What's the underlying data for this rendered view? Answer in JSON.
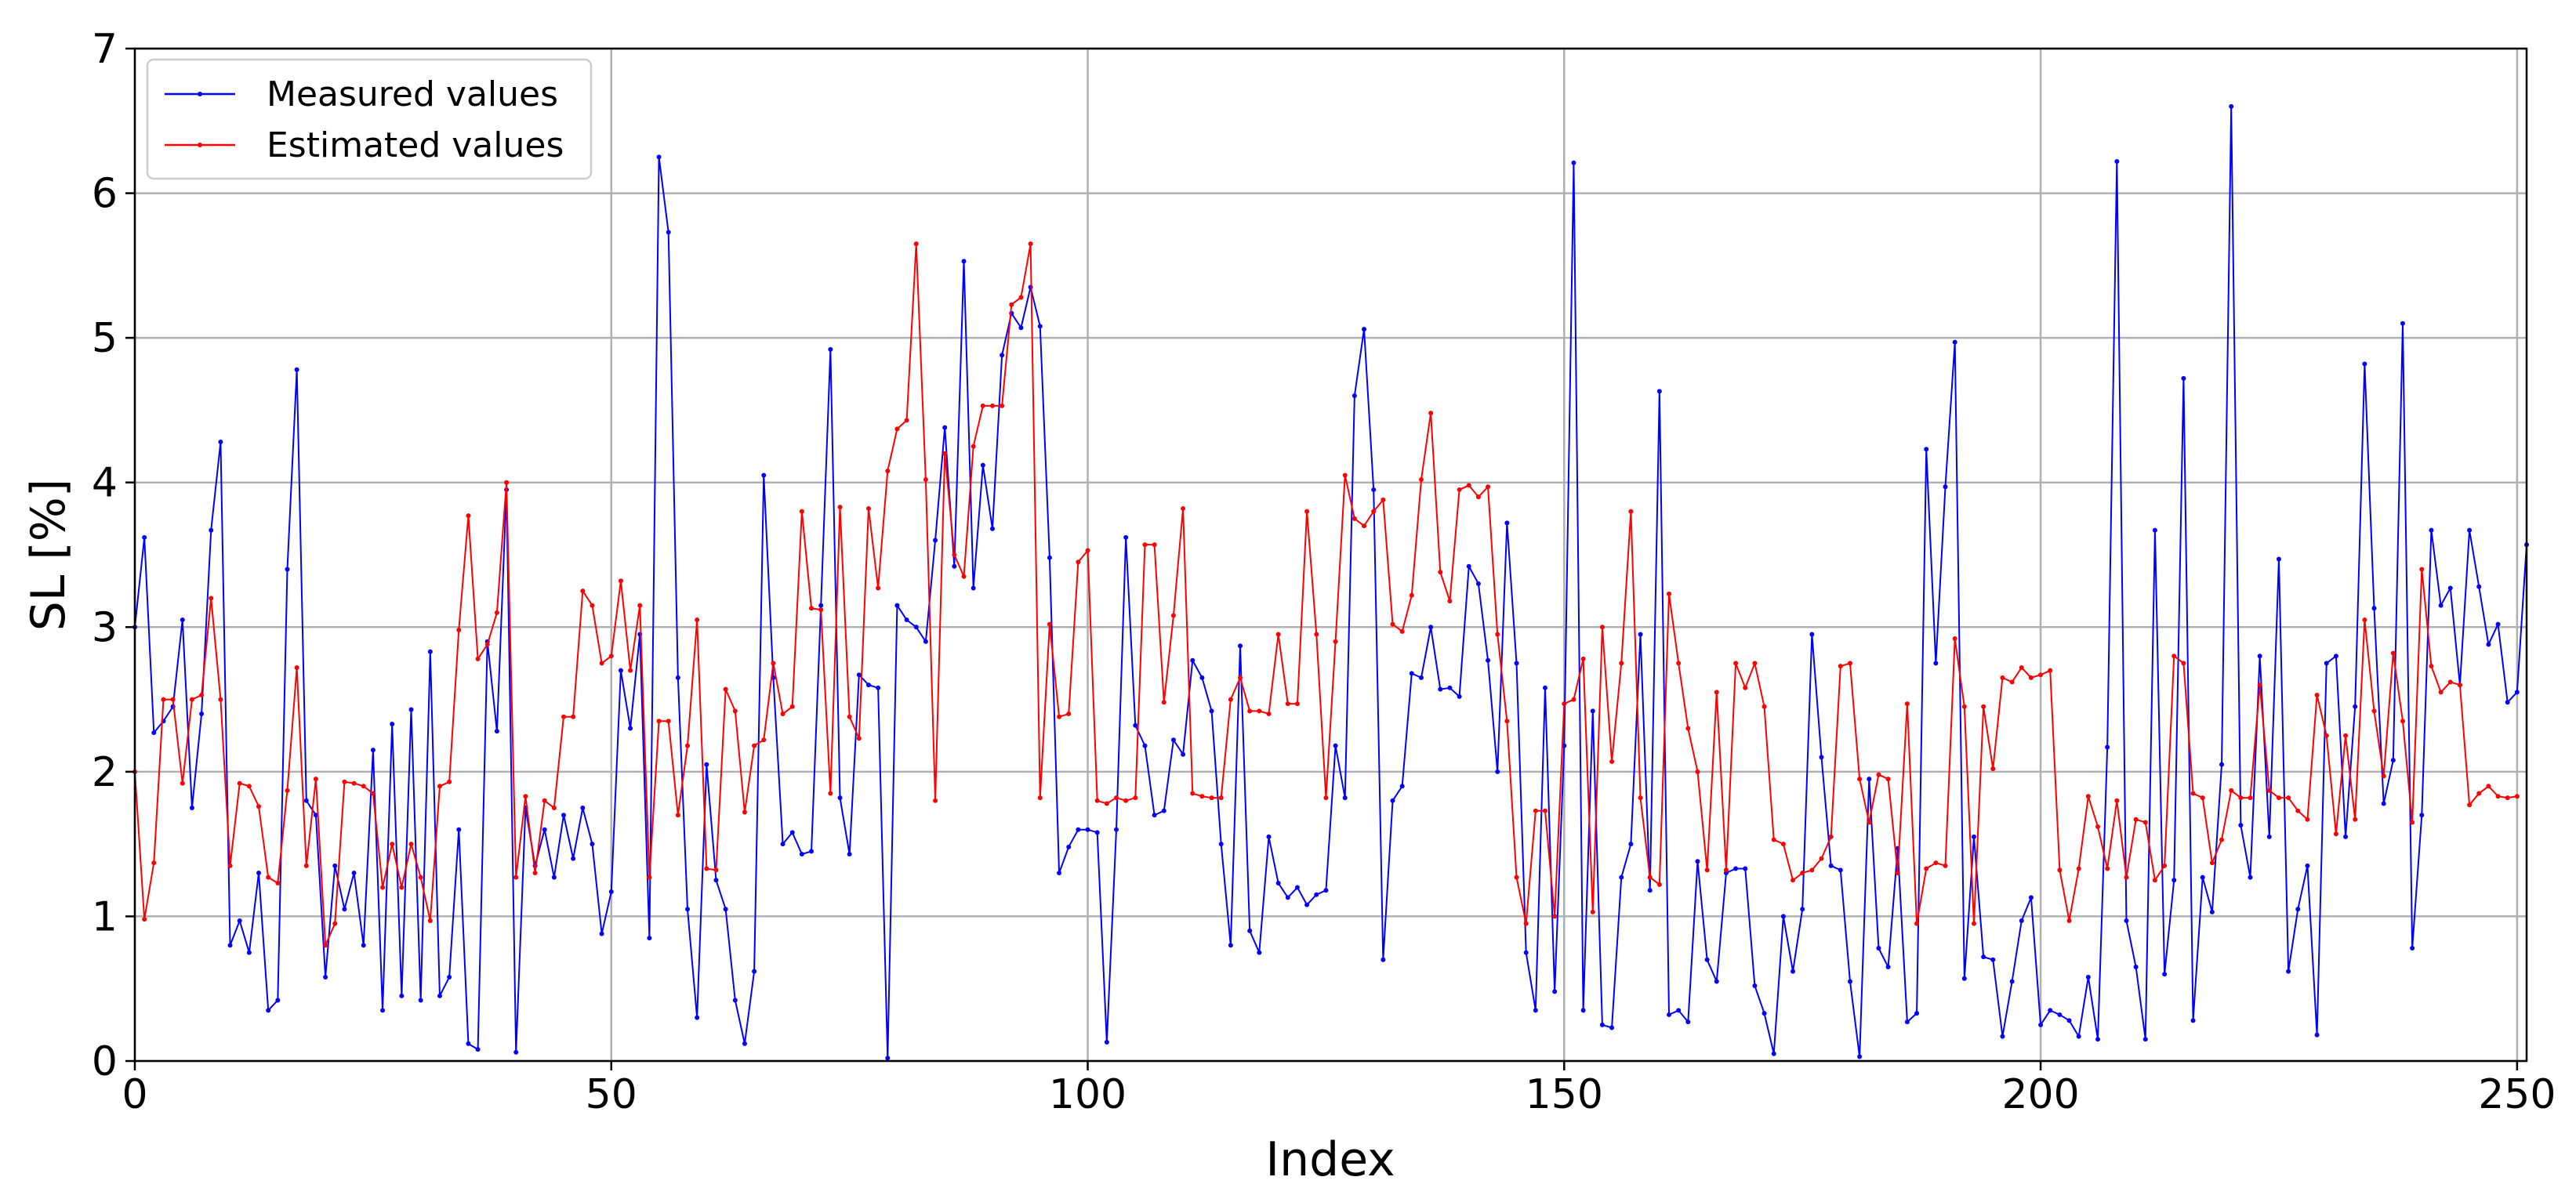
{
  "chart_data": {
    "type": "line",
    "title": "",
    "xlabel": "Index",
    "ylabel": "SL [%]",
    "xlim": [
      0,
      251
    ],
    "ylim": [
      0,
      7
    ],
    "x_ticks": [
      0,
      50,
      100,
      150,
      200,
      250
    ],
    "y_ticks": [
      0,
      1,
      2,
      3,
      4,
      5,
      6,
      7
    ],
    "grid": true,
    "legend_position": "top-left",
    "series": [
      {
        "name": "Measured values",
        "color": "#0000ff",
        "values": [
          3.0,
          3.62,
          2.27,
          2.35,
          2.45,
          3.05,
          1.75,
          2.4,
          3.67,
          4.28,
          0.8,
          0.97,
          0.75,
          1.3,
          0.35,
          0.42,
          3.4,
          4.78,
          1.8,
          1.7,
          0.58,
          1.35,
          1.05,
          1.3,
          0.8,
          2.15,
          0.35,
          2.33,
          0.45,
          2.43,
          0.42,
          2.83,
          0.45,
          0.58,
          1.6,
          0.12,
          0.08,
          2.9,
          2.28,
          3.95,
          0.06,
          1.75,
          1.35,
          1.6,
          1.27,
          1.7,
          1.4,
          1.75,
          1.5,
          0.88,
          1.17,
          2.7,
          2.3,
          2.95,
          0.85,
          6.25,
          5.73,
          2.65,
          1.05,
          0.3,
          2.05,
          1.25,
          1.05,
          0.42,
          0.12,
          0.62,
          4.05,
          2.65,
          1.5,
          1.58,
          1.43,
          1.45,
          3.15,
          4.92,
          1.82,
          1.43,
          2.67,
          2.6,
          2.58,
          0.02,
          3.15,
          3.05,
          3.0,
          2.9,
          3.6,
          4.38,
          3.42,
          5.53,
          3.27,
          4.12,
          3.68,
          4.88,
          5.17,
          5.07,
          5.35,
          5.08,
          3.48,
          1.3,
          1.48,
          1.6,
          1.6,
          1.58,
          0.13,
          1.6,
          3.62,
          2.32,
          2.18,
          1.7,
          1.73,
          2.22,
          2.12,
          2.77,
          2.65,
          2.42,
          1.5,
          0.8,
          2.87,
          0.9,
          0.75,
          1.55,
          1.23,
          1.13,
          1.2,
          1.08,
          1.15,
          1.18,
          2.18,
          1.82,
          4.6,
          5.06,
          3.95,
          0.7,
          1.8,
          1.9,
          2.68,
          2.65,
          3.0,
          2.57,
          2.58,
          2.52,
          3.42,
          3.3,
          2.77,
          2.0,
          3.72,
          2.75,
          0.75,
          0.35,
          2.58,
          0.48,
          2.18,
          6.21,
          0.35,
          2.42,
          0.25,
          0.23,
          1.27,
          1.5,
          2.95,
          1.18,
          4.63,
          0.32,
          0.35,
          0.27,
          1.38,
          0.7,
          0.55,
          1.3,
          1.33,
          1.33,
          0.52,
          0.33,
          0.05,
          1.0,
          0.62,
          1.05,
          2.95,
          2.1,
          1.35,
          1.32,
          0.55,
          0.03,
          1.95,
          0.78,
          0.65,
          1.47,
          0.27,
          0.33,
          4.23,
          2.75,
          3.97,
          4.97,
          0.57,
          1.55,
          0.72,
          0.7,
          0.17,
          0.55,
          0.97,
          1.13,
          0.25,
          0.35,
          0.32,
          0.28,
          0.17,
          0.58,
          0.15,
          2.17,
          6.22,
          0.97,
          0.65,
          0.15,
          3.67,
          0.6,
          1.25,
          4.72,
          0.28,
          1.27,
          1.03,
          2.05,
          6.6,
          1.63,
          1.27,
          2.8,
          1.55,
          3.47,
          0.62,
          1.05,
          1.35,
          0.18,
          2.75,
          2.8,
          1.55,
          2.45,
          4.82,
          3.13,
          1.78,
          2.08,
          5.1,
          0.78,
          1.7,
          3.67,
          3.15,
          3.27,
          2.6,
          3.67,
          3.28,
          2.88,
          3.02,
          2.48,
          2.55,
          3.57
        ]
      },
      {
        "name": "Estimated values",
        "color": "#ff0000",
        "values": [
          2.0,
          0.98,
          1.37,
          2.5,
          2.5,
          1.92,
          2.5,
          2.53,
          3.2,
          2.5,
          1.35,
          1.92,
          1.9,
          1.76,
          1.27,
          1.23,
          1.87,
          2.72,
          1.35,
          1.95,
          0.8,
          0.95,
          1.93,
          1.92,
          1.9,
          1.85,
          1.2,
          1.5,
          1.2,
          1.5,
          1.27,
          0.97,
          1.9,
          1.93,
          2.98,
          3.77,
          2.78,
          2.88,
          3.1,
          4.0,
          1.27,
          1.83,
          1.3,
          1.8,
          1.75,
          2.38,
          2.38,
          3.25,
          3.15,
          2.75,
          2.8,
          3.32,
          2.7,
          3.15,
          1.27,
          2.35,
          2.35,
          1.7,
          2.18,
          3.05,
          1.33,
          1.32,
          2.57,
          2.42,
          1.72,
          2.18,
          2.22,
          2.75,
          2.4,
          2.45,
          3.8,
          3.13,
          3.12,
          1.85,
          3.83,
          2.38,
          2.23,
          3.82,
          3.27,
          4.08,
          4.37,
          4.43,
          5.65,
          4.02,
          1.8,
          4.2,
          3.5,
          3.35,
          4.25,
          4.53,
          4.53,
          4.53,
          5.23,
          5.28,
          5.65,
          1.82,
          3.02,
          2.38,
          2.4,
          3.45,
          3.53,
          1.8,
          1.78,
          1.82,
          1.8,
          1.82,
          3.57,
          3.57,
          2.48,
          3.08,
          3.82,
          1.85,
          1.83,
          1.82,
          1.82,
          2.5,
          2.65,
          2.42,
          2.42,
          2.4,
          2.95,
          2.47,
          2.47,
          3.8,
          2.95,
          1.82,
          2.9,
          4.05,
          3.75,
          3.7,
          3.8,
          3.88,
          3.02,
          2.97,
          3.22,
          4.02,
          4.48,
          3.38,
          3.18,
          3.95,
          3.98,
          3.9,
          3.97,
          2.95,
          2.35,
          1.27,
          0.95,
          1.73,
          1.73,
          1.0,
          2.47,
          2.5,
          2.78,
          1.03,
          3.0,
          2.07,
          2.75,
          3.8,
          1.82,
          1.27,
          1.22,
          3.23,
          2.75,
          2.3,
          2.0,
          1.32,
          2.55,
          1.32,
          2.75,
          2.58,
          2.75,
          2.45,
          1.53,
          1.5,
          1.25,
          1.3,
          1.32,
          1.4,
          1.55,
          2.73,
          2.75,
          1.95,
          1.65,
          1.98,
          1.95,
          1.3,
          2.47,
          0.95,
          1.33,
          1.37,
          1.35,
          2.92,
          2.45,
          0.95,
          2.45,
          2.02,
          2.65,
          2.62,
          2.72,
          2.65,
          2.67,
          2.7,
          1.32,
          0.97,
          1.33,
          1.83,
          1.62,
          1.33,
          1.8,
          1.27,
          1.67,
          1.65,
          1.25,
          1.35,
          2.8,
          2.75,
          1.85,
          1.82,
          1.37,
          1.53,
          1.87,
          1.82,
          1.82,
          2.6,
          1.87,
          1.82,
          1.82,
          1.73,
          1.67,
          2.53,
          2.25,
          1.57,
          2.25,
          1.67,
          3.05,
          2.42,
          1.97,
          2.82,
          2.35,
          1.65,
          3.4,
          2.73,
          2.55,
          2.62,
          2.6,
          1.77,
          1.85,
          1.9,
          1.83,
          1.82,
          1.83
        ]
      }
    ]
  }
}
